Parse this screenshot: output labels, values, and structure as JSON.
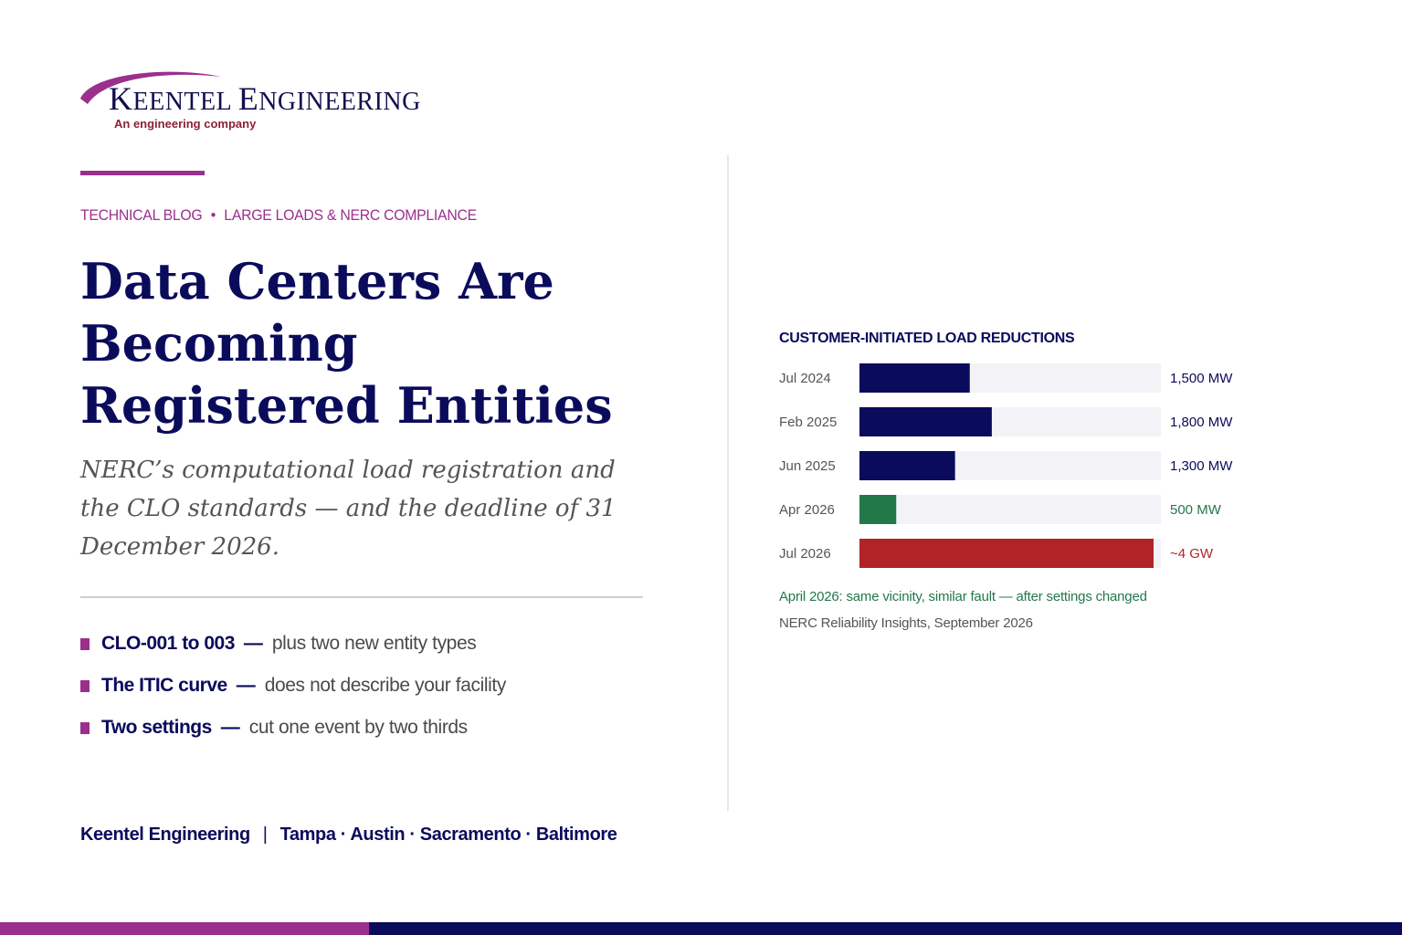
{
  "brand": {
    "logo_name_first": "K",
    "logo_name_rest1": "EENTEL ",
    "logo_name_first2": "E",
    "logo_name_rest2": "NGINEERING",
    "logo_tagline": "An engineering company",
    "logo_text_full": "Keentel Engineering",
    "colors": {
      "navy": "#0b0b5c",
      "magenta": "#9b2f8e",
      "green": "#23784a",
      "red": "#b02428"
    }
  },
  "kicker": {
    "category": "TECHNICAL BLOG",
    "separator": "•",
    "topic": "LARGE LOADS & NERC COMPLIANCE"
  },
  "headline": "Data Centers Are Becoming Registered Entities",
  "subtitle": "NERC’s computational load registration and the CLO standards — and the deadline of 31 December 2026.",
  "bullets": [
    {
      "title": "CLO-001 to 003",
      "dash": "—",
      "desc": "plus two new entity types"
    },
    {
      "title": "The ITIC curve",
      "dash": "—",
      "desc": "does not describe your facility"
    },
    {
      "title": "Two settings",
      "dash": "—",
      "desc": "cut one event by two thirds"
    }
  ],
  "footer": {
    "company": "Keentel Engineering",
    "separator": "|",
    "locations": "Tampa · Austin · Sacramento · Baltimore"
  },
  "chart_data": {
    "type": "bar",
    "orientation": "horizontal",
    "title": "CUSTOMER-INITIATED LOAD REDUCTIONS",
    "categories": [
      "Jul 2024",
      "Feb 2025",
      "Jun 2025",
      "Apr 2026",
      "Jul 2026"
    ],
    "values": [
      1500,
      1800,
      1300,
      500,
      4000
    ],
    "unit": "MW",
    "value_labels": [
      "1,500 MW",
      "1,800 MW",
      "1,300 MW",
      "500 MW",
      "~4 GW"
    ],
    "bar_colors": [
      "#0b0b5c",
      "#0b0b5c",
      "#0b0b5c",
      "#23784a",
      "#b02428"
    ],
    "label_colors": [
      "#0b0b5c",
      "#0b0b5c",
      "#0b0b5c",
      "#23784a",
      "#b02428"
    ],
    "track_color": "#f3f3f7",
    "xlim": [
      0,
      4000
    ],
    "grid": false,
    "annotation": "April 2026: same vicinity, similar fault — after settings changed",
    "source": "NERC Reliability Insights, September 2026"
  }
}
